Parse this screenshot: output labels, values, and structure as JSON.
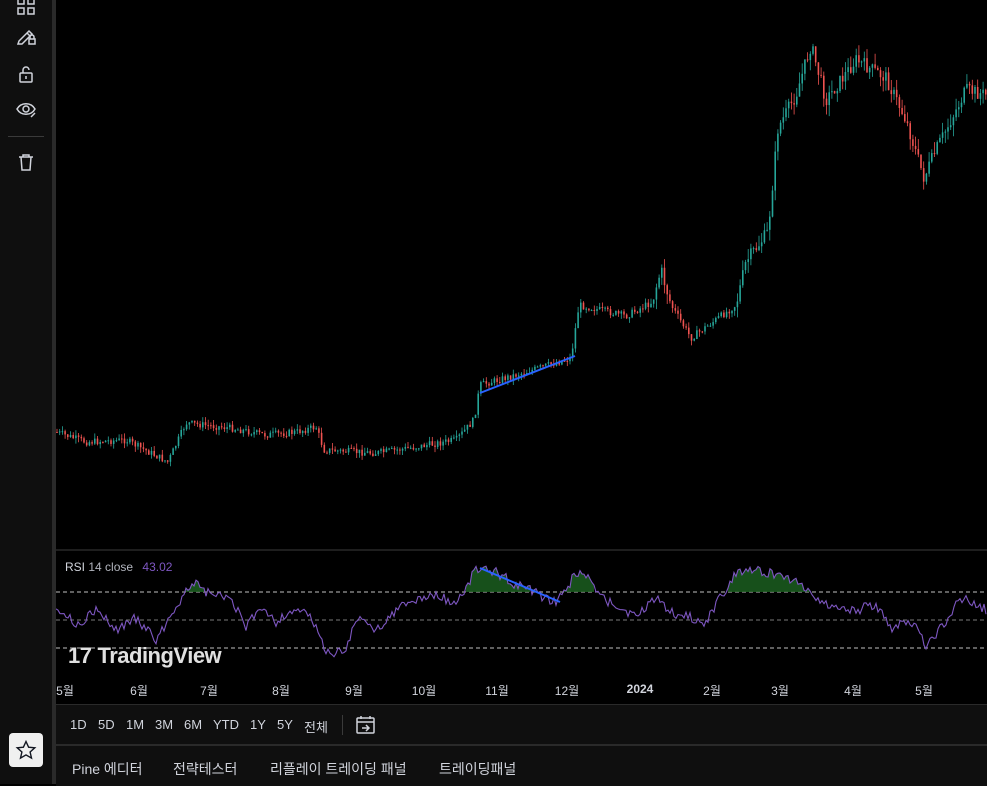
{
  "toolbar": {
    "tools": [
      {
        "name": "layout-grid-icon"
      },
      {
        "name": "lock-drawing-icon"
      },
      {
        "name": "unlock-icon"
      },
      {
        "name": "eye-icon"
      },
      {
        "name": "trash-icon"
      }
    ],
    "favorite_icon": "star-icon"
  },
  "indicator": {
    "name": "RSI",
    "params": "14 close",
    "value": "43.02"
  },
  "watermark": "TradingView",
  "time_axis": [
    "5월",
    "6월",
    "7월",
    "8월",
    "9월",
    "10월",
    "11월",
    "12월",
    "2024",
    "2월",
    "3월",
    "4월",
    "5월"
  ],
  "range_buttons": [
    "1D",
    "5D",
    "1M",
    "3M",
    "6M",
    "YTD",
    "1Y",
    "5Y",
    "전체"
  ],
  "bottom_tabs": [
    "Pine 에디터",
    "전략테스터",
    "리플레이 트레이딩 패널",
    "트레이딩패널"
  ],
  "colors": {
    "up": "#26a69a",
    "down": "#ef5350",
    "rsi_line": "#7e57c2",
    "trendline": "#2962ff",
    "rsi_fill": "#1b5e20"
  }
}
